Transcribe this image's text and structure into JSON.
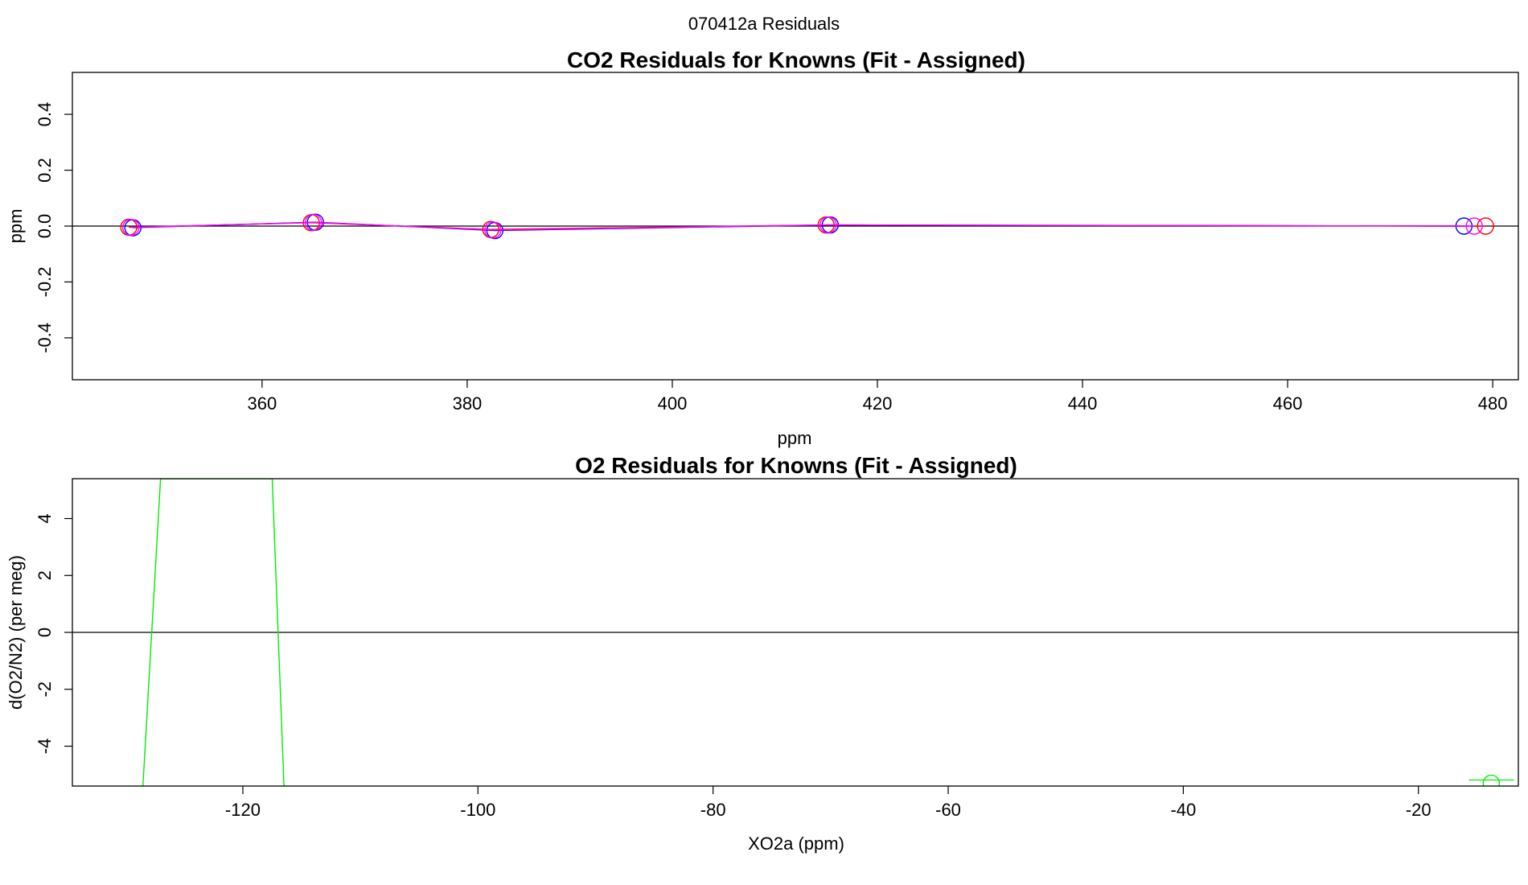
{
  "page_title": "070412a  Residuals",
  "colors": {
    "series_red": "#ff0000",
    "series_blue": "#0000ff",
    "series_magenta": "#ff00ff",
    "series_green": "#00ee00",
    "zero_line": "#000000",
    "frame": "#000000"
  },
  "chart_data": [
    {
      "type": "line",
      "title": "CO2 Residuals for Knowns (Fit - Assigned)",
      "xlabel": "ppm",
      "ylabel": "ppm",
      "xlim": [
        341.5,
        482.5
      ],
      "ylim": [
        -0.55,
        0.55
      ],
      "xticks": [
        360,
        380,
        400,
        420,
        440,
        460,
        480
      ],
      "yticks": [
        -0.4,
        -0.2,
        0.0,
        0.2,
        0.4
      ],
      "grid": false,
      "zero_line": true,
      "series": [
        {
          "color": "#ff0000",
          "marker": "circle",
          "line": true,
          "x": [
            347.0,
            364.8,
            382.3,
            415.0,
            479.3
          ],
          "y": [
            -0.004,
            0.012,
            -0.012,
            0.004,
            0.0
          ]
        },
        {
          "color": "#0000ff",
          "marker": "circle",
          "line": true,
          "x": [
            347.4,
            365.2,
            382.7,
            415.4,
            477.2
          ],
          "y": [
            -0.006,
            0.014,
            -0.016,
            0.004,
            0.0
          ]
        },
        {
          "color": "#ff00ff",
          "marker": "circle",
          "line": true,
          "x": [
            347.2,
            365.0,
            382.5,
            415.2,
            478.2
          ],
          "y": [
            -0.005,
            0.013,
            -0.014,
            0.004,
            0.0
          ]
        }
      ]
    },
    {
      "type": "line",
      "title": "O2 Residuals for Knowns (Fit - Assigned)",
      "xlabel": "XO2a (ppm)",
      "ylabel": "d(O2/N2) (per meg)",
      "xlim": [
        -134.5,
        -11.5
      ],
      "ylim": [
        -5.4,
        5.4
      ],
      "xticks": [
        -120,
        -100,
        -80,
        -60,
        -40,
        -20
      ],
      "yticks": [
        -4,
        -2,
        0,
        2,
        4
      ],
      "grid": false,
      "zero_line": true,
      "series": [
        {
          "color": "#00ee00",
          "marker": "none",
          "line": true,
          "x": [
            -128.5,
            -127.0,
            -117.5,
            -116.5
          ],
          "y": [
            -5.4,
            5.4,
            5.4,
            -5.4
          ]
        },
        {
          "color": "#00ee00",
          "marker": "circle",
          "line": false,
          "x": [
            -13.8
          ],
          "y": [
            -5.3
          ],
          "error_bar": true
        }
      ]
    }
  ]
}
